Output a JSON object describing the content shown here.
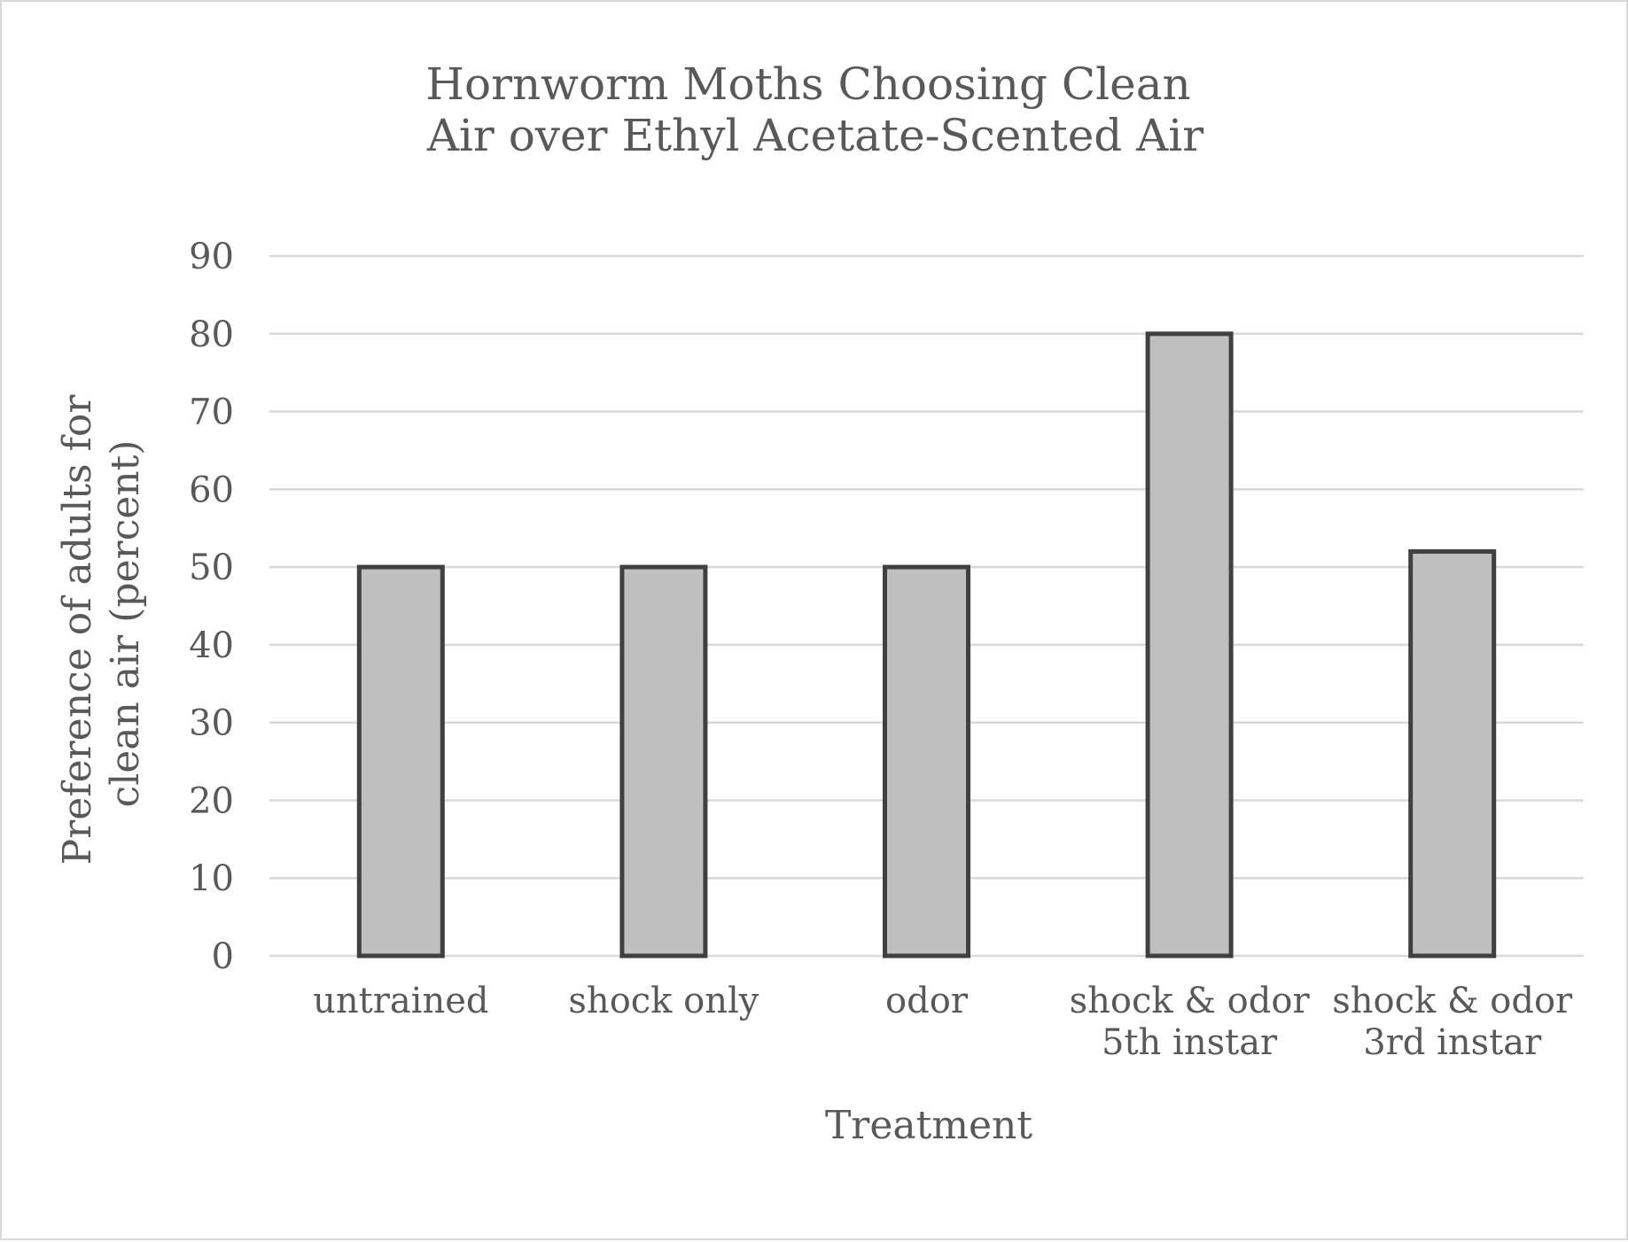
{
  "chart_data": {
    "type": "bar",
    "title": [
      "Hornworm Moths Choosing Clean",
      "Air over Ethyl Acetate-Scented Air"
    ],
    "xlabel": "Treatment",
    "ylabel": [
      "Preference of adults for",
      "clean air (percent)"
    ],
    "categories": [
      [
        "untrained"
      ],
      [
        "shock only"
      ],
      [
        "odor"
      ],
      [
        "shock & odor",
        "5th instar"
      ],
      [
        "shock & odor",
        "3rd instar"
      ]
    ],
    "values": [
      50,
      50,
      50,
      80,
      52
    ],
    "ylim": [
      0,
      90
    ],
    "yticks": [
      "0",
      "10",
      "20",
      "30",
      "40",
      "50",
      "60",
      "70",
      "80",
      "90"
    ],
    "grid": true,
    "legend": "none",
    "colors": {
      "bar_fill": "#bfbfbf",
      "bar_edge": "#404040",
      "grid": "#d9d9d9",
      "text": "#595959"
    }
  }
}
